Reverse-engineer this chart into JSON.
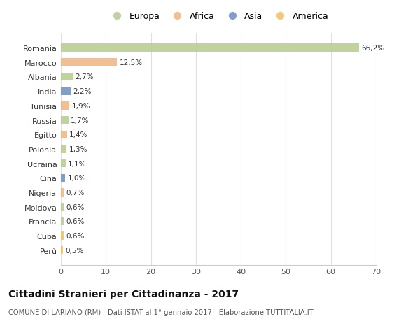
{
  "countries": [
    "Romania",
    "Marocco",
    "Albania",
    "India",
    "Tunisia",
    "Russia",
    "Egitto",
    "Polonia",
    "Ucraina",
    "Cina",
    "Nigeria",
    "Moldova",
    "Francia",
    "Cuba",
    "Perù"
  ],
  "values": [
    66.2,
    12.5,
    2.7,
    2.2,
    1.9,
    1.7,
    1.4,
    1.3,
    1.1,
    1.0,
    0.7,
    0.6,
    0.6,
    0.6,
    0.5
  ],
  "labels": [
    "66,2%",
    "12,5%",
    "2,7%",
    "2,2%",
    "1,9%",
    "1,7%",
    "1,4%",
    "1,3%",
    "1,1%",
    "1,0%",
    "0,7%",
    "0,6%",
    "0,6%",
    "0,6%",
    "0,5%"
  ],
  "colors": [
    "#b5cc8e",
    "#f0b482",
    "#b5cc8e",
    "#6b8ebf",
    "#f0b482",
    "#b5cc8e",
    "#f0b482",
    "#b5cc8e",
    "#b5cc8e",
    "#6b8ebf",
    "#f0b482",
    "#b5cc8e",
    "#b5cc8e",
    "#f0c060",
    "#f0c060"
  ],
  "legend_labels": [
    "Europa",
    "Africa",
    "Asia",
    "America"
  ],
  "legend_colors": [
    "#b5cc8e",
    "#f0b482",
    "#6b8ebf",
    "#f0c060"
  ],
  "title": "Cittadini Stranieri per Cittadinanza - 2017",
  "subtitle": "COMUNE DI LARIANO (RM) - Dati ISTAT al 1° gennaio 2017 - Elaborazione TUTTITALIA.IT",
  "xlim": [
    0,
    70
  ],
  "xticks": [
    0,
    10,
    20,
    30,
    40,
    50,
    60,
    70
  ],
  "background_color": "#ffffff",
  "plot_bg_color": "#ffffff",
  "grid_color": "#e0e0e0"
}
